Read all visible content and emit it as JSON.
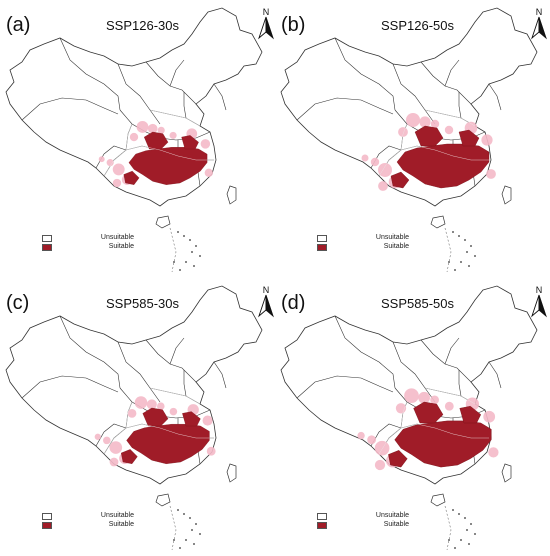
{
  "panels": [
    {
      "label": "(a)",
      "title": "SSP126-30s",
      "spread": 0.85
    },
    {
      "label": "(b)",
      "title": "SSP126-50s",
      "spread": 1.0
    },
    {
      "label": "(c)",
      "title": "SSP585-30s",
      "spread": 0.9
    },
    {
      "label": "(d)",
      "title": "SSP585-50s",
      "spread": 1.05
    }
  ],
  "north_arrow_label": "N",
  "legend": {
    "unsuitable_label": "Unsuitable",
    "suitable_label": "Suitable",
    "unsuitable_color": "#ffffff",
    "suitable_color": "#a01c28",
    "fringe_color": "#f4b9c8"
  }
}
